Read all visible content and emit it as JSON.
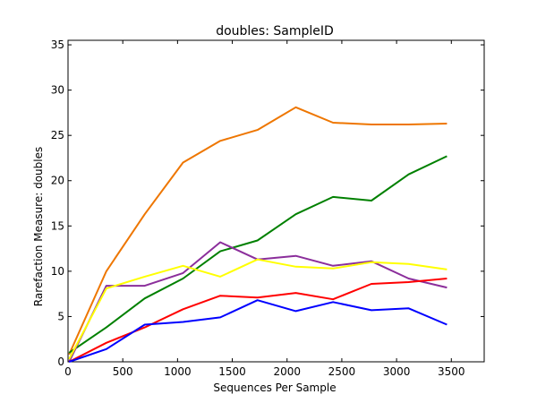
{
  "chart_data": {
    "type": "line",
    "title": "doubles: SampleID",
    "xlabel": "Sequences Per Sample",
    "ylabel": "Rarefaction Measure: doubles",
    "xlim": [
      0,
      3800
    ],
    "ylim": [
      0,
      35.5
    ],
    "x_ticks": [
      0,
      500,
      1000,
      1500,
      2000,
      2500,
      3000,
      3500
    ],
    "y_ticks": [
      0,
      5,
      10,
      15,
      20,
      25,
      30,
      35
    ],
    "grid": false,
    "x": [
      10,
      350,
      700,
      1050,
      1390,
      1730,
      2080,
      2420,
      2770,
      3110,
      3460
    ],
    "series": [
      {
        "color": "#ee7600",
        "values": [
          0.8,
          10.0,
          16.3,
          22.0,
          24.4,
          25.6,
          28.1,
          26.4,
          26.2,
          26.2,
          26.3
        ]
      },
      {
        "color": "#008000",
        "values": [
          1.0,
          3.8,
          7.0,
          9.2,
          12.2,
          13.4,
          16.3,
          18.2,
          17.8,
          20.7,
          22.7
        ]
      },
      {
        "color": "#8b2e9b",
        "values": [
          0.0,
          8.4,
          8.4,
          9.8,
          13.2,
          11.3,
          11.7,
          10.6,
          11.1,
          9.2,
          8.2
        ]
      },
      {
        "color": "#ffff00",
        "values": [
          0.3,
          8.1,
          9.4,
          10.6,
          9.4,
          11.3,
          10.5,
          10.3,
          11.0,
          10.8,
          10.2
        ]
      },
      {
        "color": "#ff0000",
        "values": [
          0.0,
          2.1,
          3.8,
          5.8,
          7.3,
          7.1,
          7.6,
          6.9,
          8.6,
          8.8,
          9.2
        ]
      },
      {
        "color": "#0000ff",
        "values": [
          0.0,
          1.4,
          4.1,
          4.4,
          4.9,
          6.8,
          5.6,
          6.6,
          5.7,
          5.9,
          4.1
        ]
      }
    ]
  }
}
